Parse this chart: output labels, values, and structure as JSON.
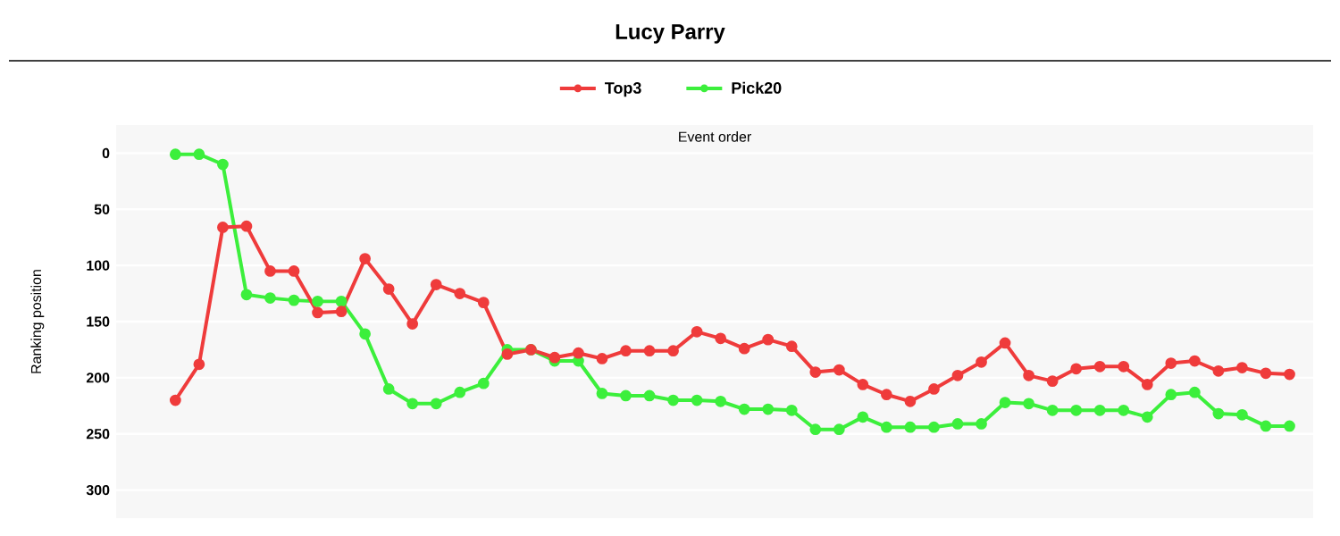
{
  "chart_data": {
    "type": "line",
    "title": "Lucy Parry",
    "xlabel": "Event order",
    "ylabel": "Ranking position",
    "categories": [
      null,
      null,
      null,
      null,
      null,
      null,
      null,
      null,
      null,
      null,
      null,
      null,
      null,
      null,
      null,
      null,
      null,
      null,
      null,
      null,
      null,
      null,
      null,
      null,
      null,
      null,
      null,
      null,
      null,
      null,
      null,
      null,
      null,
      null,
      null,
      null,
      null,
      null,
      null,
      null,
      null,
      null,
      null,
      null,
      null,
      null,
      null,
      null
    ],
    "series": [
      {
        "name": "Top3",
        "color": "#ef3b3b",
        "values": [
          220,
          188,
          66,
          65,
          105,
          105,
          142,
          141,
          94,
          121,
          152,
          117,
          125,
          133,
          179,
          175,
          182,
          178,
          183,
          176,
          176,
          176,
          159,
          165,
          174,
          166,
          172,
          195,
          193,
          206,
          215,
          221,
          210,
          198,
          186,
          169,
          198,
          203,
          192,
          190,
          190,
          206,
          187,
          185,
          194,
          191,
          196,
          197
        ]
      },
      {
        "name": "Pick20",
        "color": "#3cef3c",
        "values": [
          1,
          1,
          10,
          126,
          129,
          131,
          132,
          132,
          161,
          210,
          223,
          223,
          213,
          205,
          175,
          175,
          185,
          185,
          214,
          216,
          216,
          220,
          220,
          221,
          228,
          228,
          229,
          246,
          246,
          235,
          244,
          244,
          244,
          241,
          241,
          222,
          223,
          229,
          229,
          229,
          229,
          235,
          215,
          213,
          232,
          233,
          243,
          243
        ]
      }
    ],
    "ylim": [
      325,
      -25
    ],
    "yticks": [
      0,
      50,
      100,
      150,
      200,
      250,
      300
    ],
    "grid": "y",
    "legend": "top",
    "marker": "circle",
    "line_style": "solid"
  }
}
